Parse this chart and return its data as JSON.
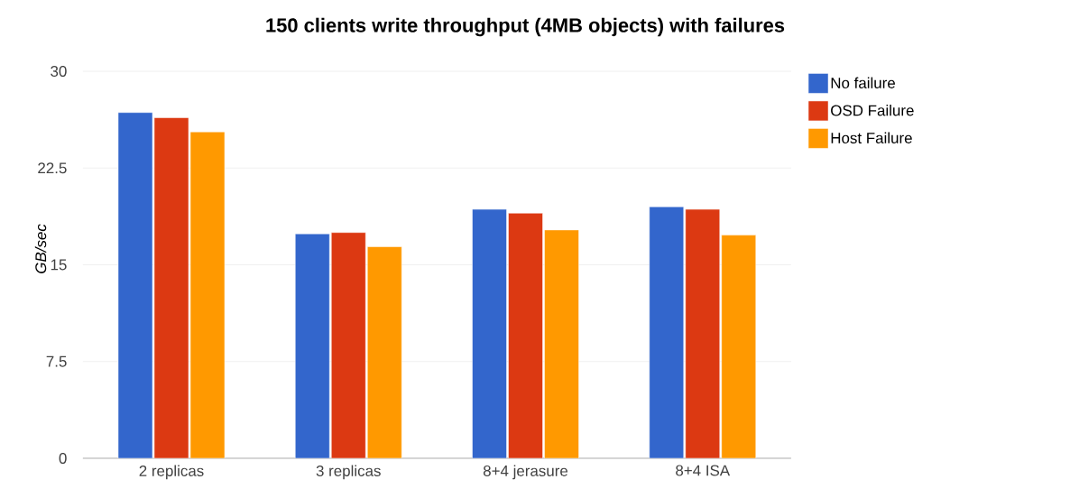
{
  "chart_data": {
    "type": "bar",
    "title": "150 clients write throughput (4MB objects) with failures",
    "ylabel": "GB/sec",
    "categories": [
      "2 replicas",
      "3 replicas",
      "8+4 jerasure",
      "8+4 ISA"
    ],
    "series": [
      {
        "name": "No failure",
        "color": "#3366cc",
        "values": [
          26.8,
          17.4,
          19.3,
          19.5
        ]
      },
      {
        "name": "OSD Failure",
        "color": "#dc3912",
        "values": [
          26.4,
          17.5,
          19.0,
          19.3
        ]
      },
      {
        "name": "Host Failure",
        "color": "#ff9900",
        "values": [
          25.3,
          16.4,
          17.7,
          17.3
        ]
      }
    ],
    "ylim": [
      0,
      30
    ],
    "yticks": [
      0,
      7.5,
      15,
      22.5,
      30
    ],
    "grid": "y",
    "legend": "right"
  }
}
